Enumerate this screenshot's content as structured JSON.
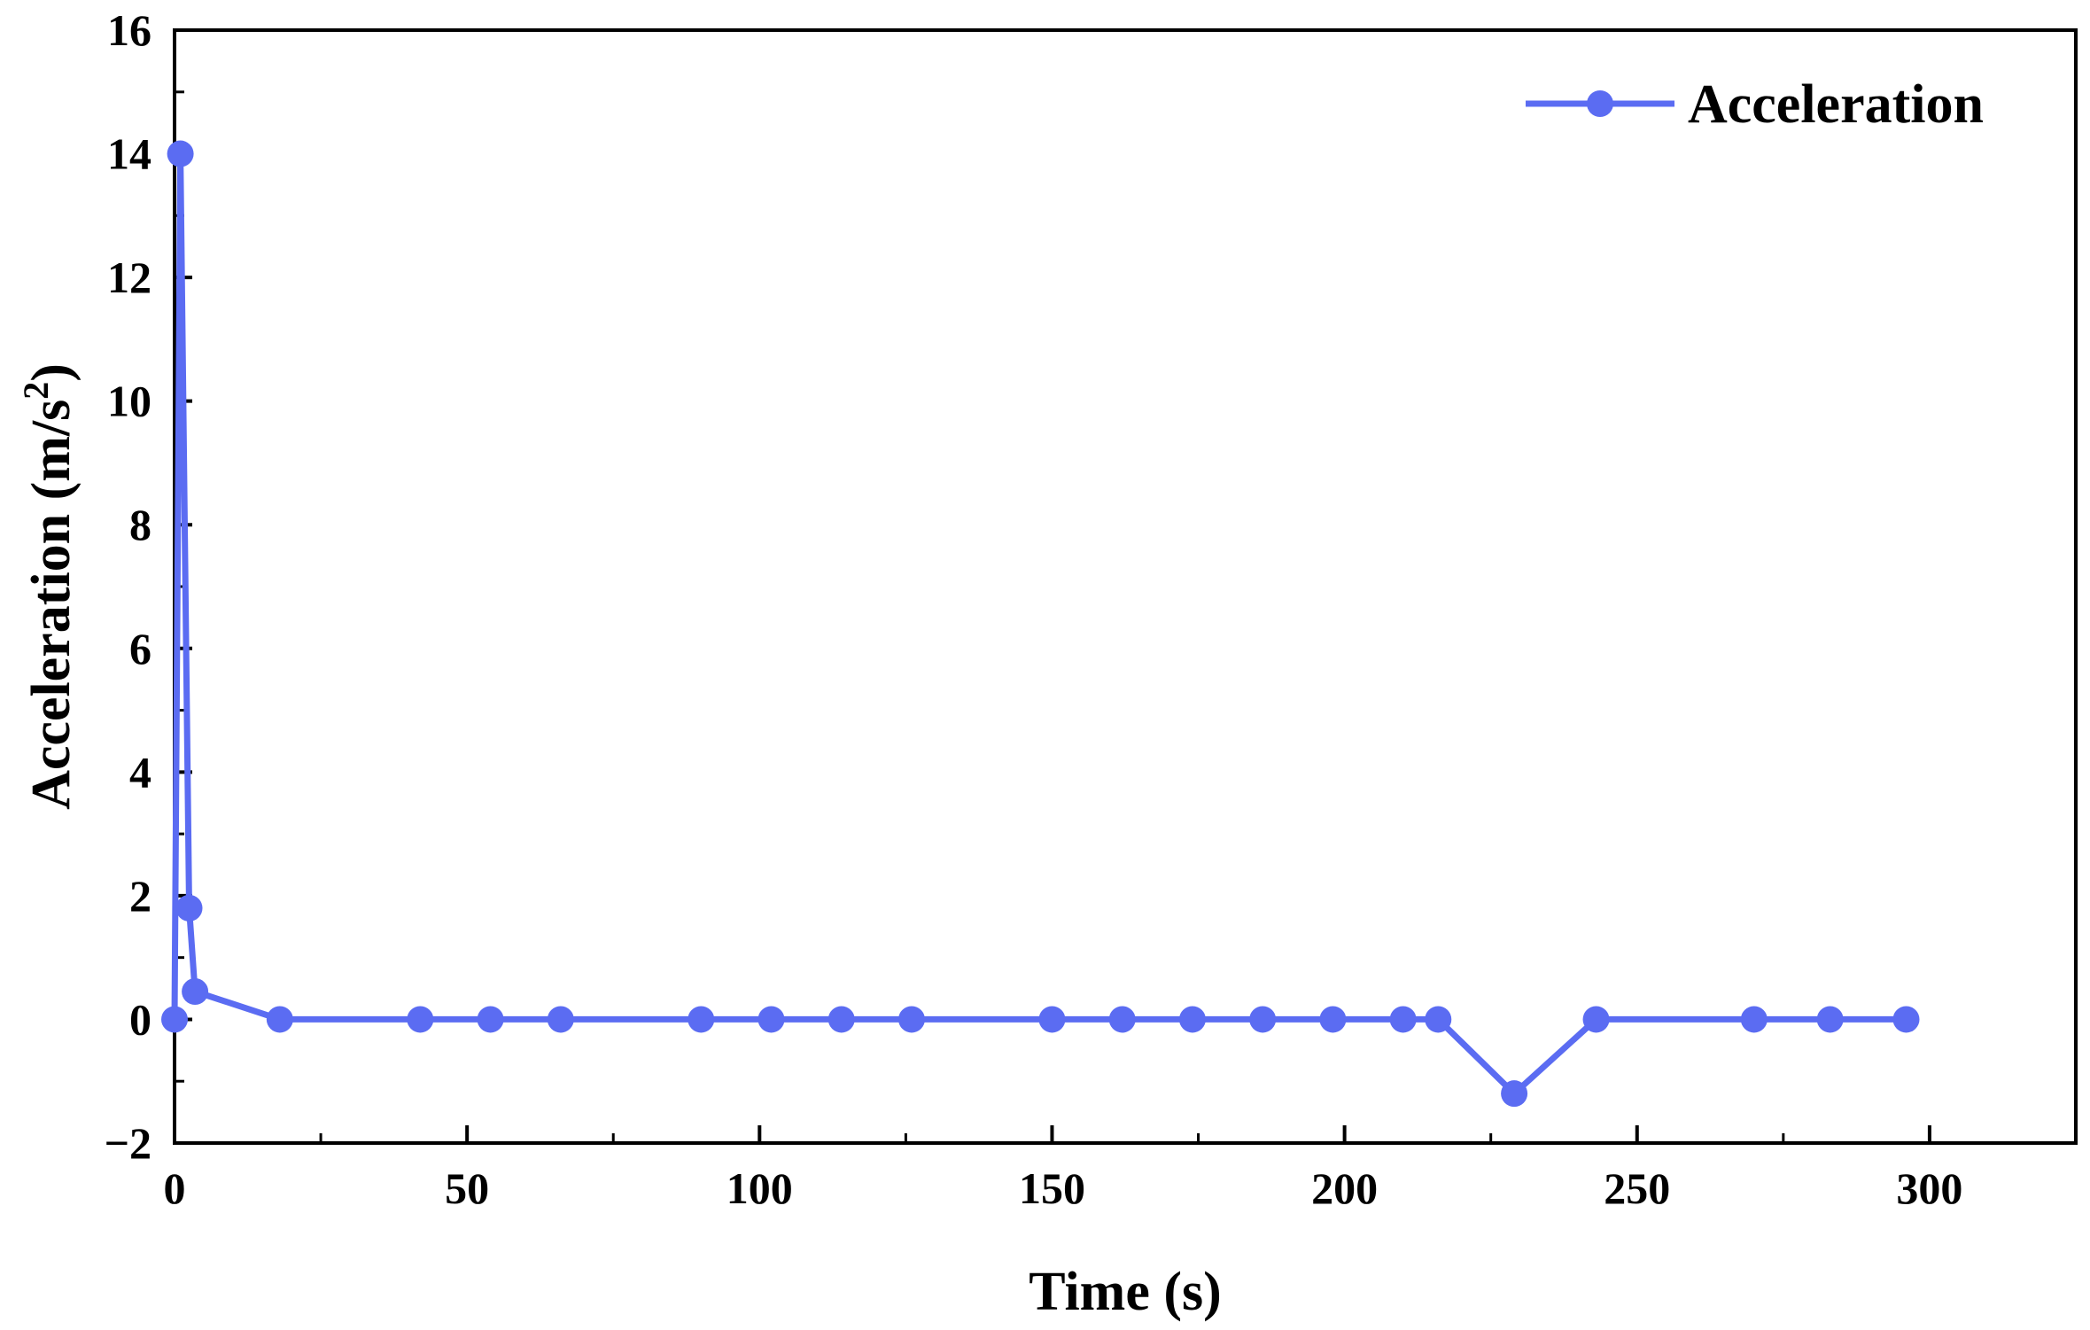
{
  "chart_data": {
    "type": "line",
    "title": "",
    "xlabel": "Time (s)",
    "ylabel_main": "Acceleration (m/s",
    "ylabel_sup": "2",
    "ylabel_close": ")",
    "xlim": [
      0,
      325
    ],
    "ylim": [
      -2,
      16
    ],
    "x_major_ticks": [
      0,
      50,
      100,
      150,
      200,
      250,
      300
    ],
    "x_tick_labels": [
      "0",
      "50",
      "100",
      "150",
      "200",
      "250",
      "300"
    ],
    "y_major_ticks": [
      -2,
      0,
      2,
      4,
      6,
      8,
      10,
      12,
      14,
      16
    ],
    "y_tick_labels": [
      "−2",
      "0",
      "2",
      "4",
      "6",
      "8",
      "10",
      "12",
      "14",
      "16"
    ],
    "legend_position": "top-right",
    "series": [
      {
        "name": "Acceleration",
        "color": "#5b6cf2",
        "x": [
          0,
          1,
          2.5,
          3.5,
          18,
          42,
          54,
          66,
          90,
          102,
          114,
          126,
          150,
          162,
          174,
          186,
          198,
          210,
          216,
          229,
          243,
          270,
          283,
          296
        ],
        "y": [
          0,
          14,
          1.8,
          0.45,
          0,
          0,
          0,
          0,
          0,
          0,
          0,
          0,
          0,
          0,
          0,
          0,
          0,
          0,
          0,
          -1.2,
          0,
          0,
          0,
          0
        ]
      }
    ]
  }
}
